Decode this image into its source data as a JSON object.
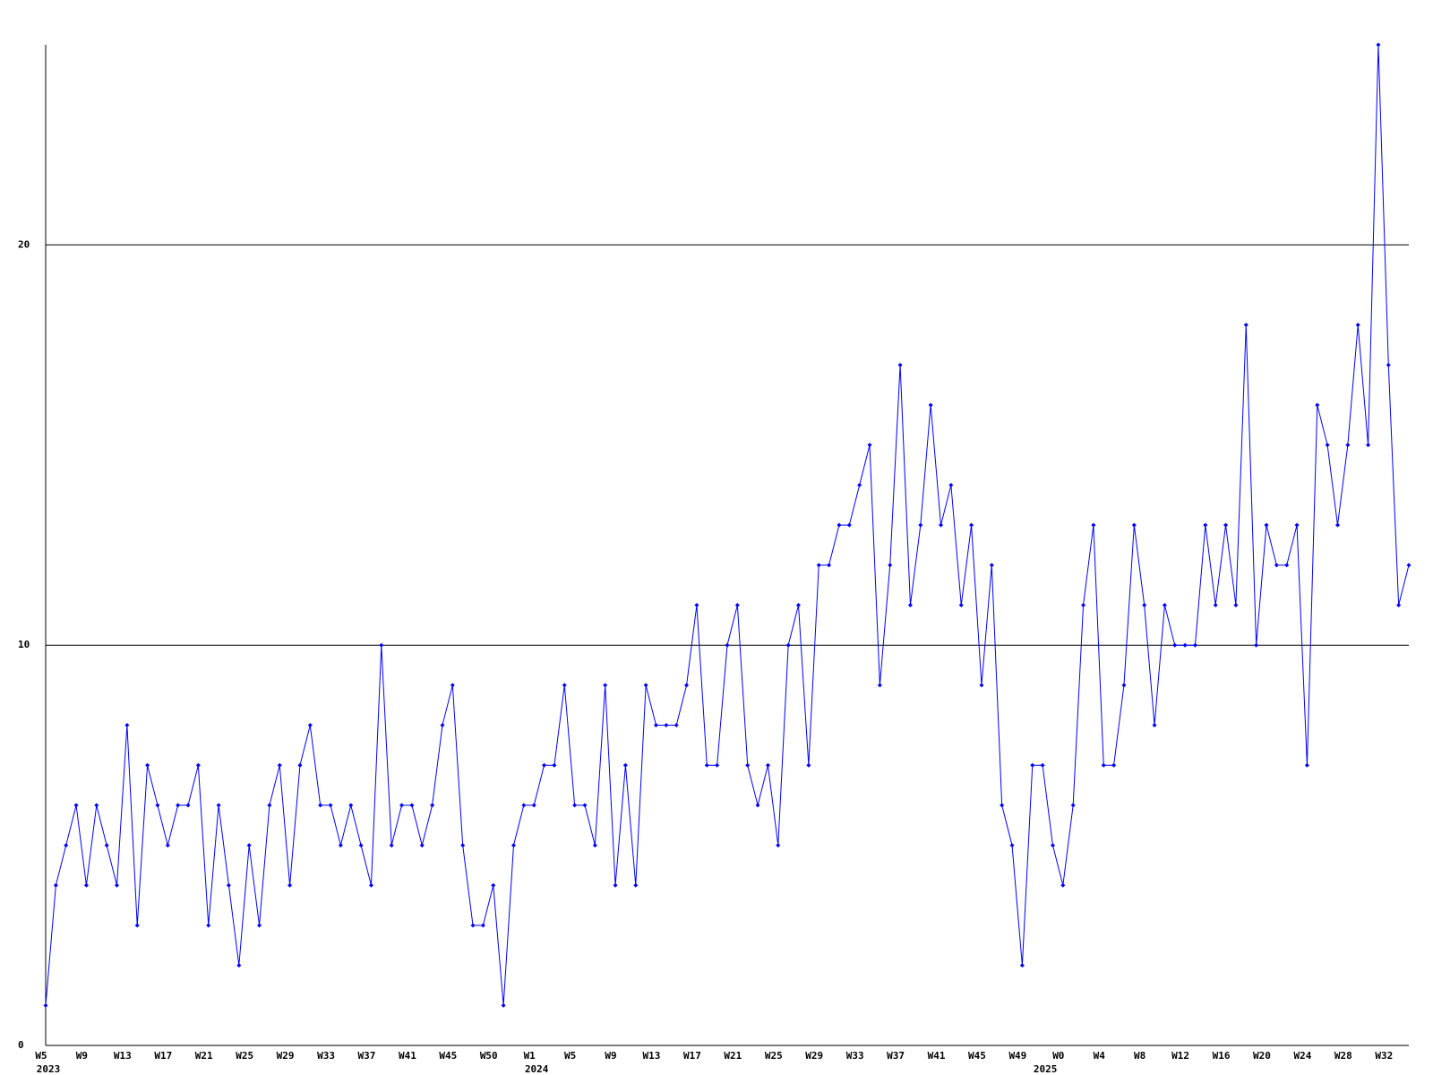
{
  "chart_data": {
    "type": "line",
    "color": "#0000ff",
    "grid": true,
    "ylim": [
      0,
      25
    ],
    "yticks": [
      0,
      10,
      20
    ],
    "categories": [
      "W5",
      null,
      null,
      null,
      "W9",
      null,
      null,
      null,
      "W13",
      null,
      null,
      null,
      "W17",
      null,
      null,
      null,
      "W21",
      null,
      null,
      null,
      "W25",
      null,
      null,
      null,
      "W29",
      null,
      null,
      null,
      "W33",
      null,
      null,
      null,
      "W37",
      null,
      null,
      null,
      "W41",
      null,
      null,
      null,
      "W45",
      null,
      null,
      null,
      "W50",
      null,
      null,
      null,
      "W1",
      null,
      null,
      null,
      "W5",
      null,
      null,
      null,
      "W9",
      null,
      null,
      null,
      "W13",
      null,
      null,
      null,
      "W17",
      null,
      null,
      null,
      "W21",
      null,
      null,
      null,
      "W25",
      null,
      null,
      null,
      "W29",
      null,
      null,
      null,
      "W33",
      null,
      null,
      null,
      "W37",
      null,
      null,
      null,
      "W41",
      null,
      null,
      null,
      "W45",
      null,
      null,
      null,
      "W49",
      null,
      null,
      null,
      "W0",
      null,
      null,
      null,
      "W4",
      null,
      null,
      null,
      "W8",
      null,
      null,
      null,
      "W12",
      null,
      null,
      null,
      "W16",
      null,
      null,
      null,
      "W20",
      null,
      null,
      null,
      "W24",
      null,
      null,
      null,
      "W28",
      null,
      null,
      null,
      "W32",
      null,
      null
    ],
    "year_labels": [
      "2023",
      null,
      null,
      null,
      null,
      null,
      null,
      null,
      null,
      null,
      null,
      null,
      null,
      null,
      null,
      null,
      null,
      null,
      null,
      null,
      null,
      null,
      null,
      null,
      null,
      null,
      null,
      null,
      null,
      null,
      null,
      null,
      null,
      null,
      null,
      null,
      null,
      null,
      null,
      null,
      null,
      null,
      null,
      null,
      null,
      null,
      null,
      null,
      "2024",
      null,
      null,
      null,
      null,
      null,
      null,
      null,
      null,
      null,
      null,
      null,
      null,
      null,
      null,
      null,
      null,
      null,
      null,
      null,
      null,
      null,
      null,
      null,
      null,
      null,
      null,
      null,
      null,
      null,
      null,
      null,
      null,
      null,
      null,
      null,
      null,
      null,
      null,
      null,
      null,
      null,
      null,
      null,
      null,
      null,
      null,
      null,
      null,
      null,
      "2025",
      null,
      null,
      null,
      null,
      null,
      null,
      null,
      null,
      null,
      null,
      null,
      null,
      null,
      null,
      null,
      null,
      null,
      null,
      null,
      null,
      null,
      null,
      null,
      null,
      null,
      null,
      null,
      null,
      null,
      null,
      null,
      null,
      null
    ],
    "values": [
      1,
      4,
      5,
      6,
      4,
      6,
      5,
      4,
      8,
      3,
      7,
      6,
      5,
      6,
      6,
      7,
      3,
      6,
      4,
      2,
      5,
      3,
      6,
      7,
      4,
      7,
      8,
      6,
      6,
      5,
      6,
      5,
      4,
      10,
      5,
      6,
      6,
      5,
      6,
      8,
      9,
      5,
      3,
      3,
      4,
      1,
      5,
      6,
      6,
      7,
      7,
      9,
      6,
      6,
      5,
      9,
      4,
      7,
      4,
      9,
      8,
      8,
      8,
      9,
      11,
      7,
      7,
      10,
      11,
      7,
      6,
      7,
      5,
      10,
      11,
      7,
      12,
      12,
      13,
      13,
      14,
      15,
      9,
      12,
      17,
      11,
      13,
      16,
      13,
      14,
      11,
      13,
      9,
      12,
      6,
      5,
      2,
      7,
      7,
      5,
      4,
      6,
      11,
      13,
      7,
      7,
      9,
      13,
      11,
      8,
      11,
      10,
      10,
      10,
      13,
      11,
      13,
      11,
      18,
      10,
      13,
      12,
      12,
      13,
      7,
      16,
      15,
      13,
      15,
      18,
      15,
      25,
      17,
      11,
      12
    ]
  }
}
